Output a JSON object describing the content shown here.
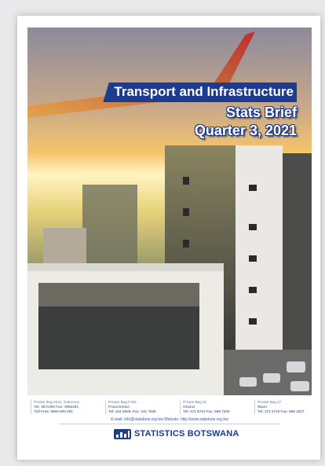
{
  "cover": {
    "title": "Transport and Infrastructure",
    "subtitle": "Stats Brief",
    "period": "Quarter 3, 2021"
  },
  "footer": {
    "offices": [
      [
        "Private Bag 0024, Gaborone",
        "Tel: 3671300 Fax: 3952201",
        "Toll Free: 0800 600 200"
      ],
      [
        "Private Bag F193,",
        "Francistown",
        "Tel: 241 5848, Fax: 241 7540"
      ],
      [
        "Private Bag 32",
        "Ghanzi",
        "Tel: 371 5723 Fax: 659 7206"
      ],
      [
        "Private Bag 47",
        "Maun",
        "Tel: 371 5716 Fax: 686 4327"
      ]
    ],
    "contact": "E-mail: info@statsbots.org.bw Website: http://www.statsbots.org.bw",
    "logo": "STATISTICS BOTSWANA"
  }
}
